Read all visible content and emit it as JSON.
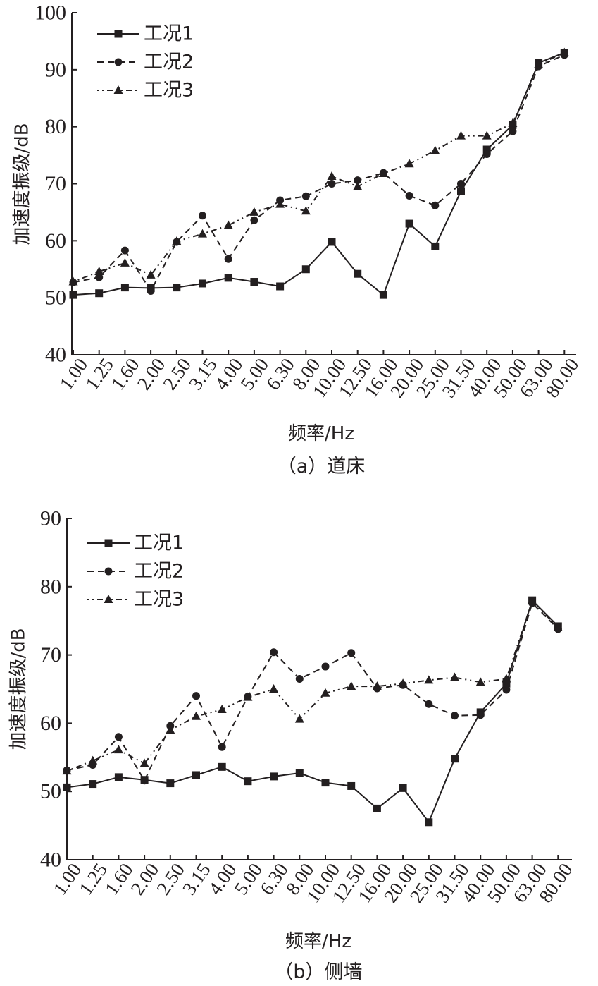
{
  "chart_data": [
    {
      "type": "line",
      "caption": "（a）道床",
      "xlabel": "频率/Hz",
      "ylabel": "加速度振级/dB",
      "ylim": [
        40,
        100
      ],
      "yticks": [
        40,
        50,
        60,
        70,
        80,
        90,
        100
      ],
      "categories": [
        "1.00",
        "1.25",
        "1.60",
        "2.00",
        "2.50",
        "3.15",
        "4.00",
        "5.00",
        "6.30",
        "8.00",
        "10.00",
        "12.50",
        "16.00",
        "20.00",
        "25.00",
        "31.50",
        "40.00",
        "50.00",
        "63.00",
        "80.00"
      ],
      "legend_position": "top-left",
      "series": [
        {
          "name": "工况1",
          "marker": "square",
          "dash": "solid",
          "values": [
            50.5,
            50.8,
            51.8,
            51.7,
            51.8,
            52.5,
            53.5,
            52.8,
            52.0,
            55.0,
            59.8,
            54.2,
            50.5,
            63.0,
            59.0,
            68.7,
            76.0,
            80.3,
            91.2,
            93.0
          ]
        },
        {
          "name": "工况2",
          "marker": "circle",
          "dash": "dashed",
          "values": [
            52.7,
            53.6,
            58.3,
            51.2,
            59.8,
            64.4,
            56.8,
            63.6,
            67.1,
            67.8,
            70.0,
            70.6,
            71.9,
            67.9,
            66.2,
            70.0,
            75.2,
            79.2,
            90.6,
            92.6
          ]
        },
        {
          "name": "工况3",
          "marker": "triangle",
          "dash": "dotted",
          "values": [
            52.8,
            54.6,
            56.1,
            54.0,
            59.9,
            61.2,
            62.7,
            65.0,
            66.4,
            65.2,
            71.3,
            69.5,
            71.8,
            73.5,
            75.8,
            78.4,
            78.4,
            80.6,
            90.9,
            93.0
          ]
        }
      ]
    },
    {
      "type": "line",
      "caption": "（b）侧墙",
      "xlabel": "频率/Hz",
      "ylabel": "加速度振级/dB",
      "ylim": [
        40,
        90
      ],
      "yticks": [
        40,
        50,
        60,
        70,
        80,
        90
      ],
      "categories": [
        "1.00",
        "1.25",
        "1.60",
        "2.00",
        "2.50",
        "3.15",
        "4.00",
        "5.00",
        "6.30",
        "8.00",
        "10.00",
        "12.50",
        "16.00",
        "20.00",
        "25.00",
        "31.50",
        "40.00",
        "50.00",
        "63.00",
        "80.00"
      ],
      "legend_position": "top-left",
      "series": [
        {
          "name": "工况1",
          "marker": "square",
          "dash": "solid",
          "values": [
            50.6,
            51.1,
            52.1,
            51.7,
            51.2,
            52.4,
            53.6,
            51.5,
            52.2,
            52.7,
            51.3,
            50.8,
            47.5,
            50.5,
            45.5,
            54.8,
            61.6,
            65.8,
            78.0,
            74.2
          ]
        },
        {
          "name": "工况2",
          "marker": "circle",
          "dash": "dashed",
          "values": [
            53.1,
            53.9,
            58.0,
            51.6,
            59.6,
            64.0,
            56.5,
            63.9,
            70.4,
            66.5,
            68.3,
            70.3,
            65.1,
            65.6,
            62.8,
            61.1,
            61.2,
            64.9,
            77.6,
            73.8
          ]
        },
        {
          "name": "工况3",
          "marker": "triangle",
          "dash": "dotted",
          "values": [
            53.0,
            54.5,
            56.1,
            54.1,
            59.0,
            61.0,
            62.0,
            63.8,
            65.0,
            60.6,
            64.4,
            65.4,
            65.4,
            65.8,
            66.3,
            66.7,
            66.0,
            66.5,
            77.9,
            74.0
          ]
        }
      ]
    }
  ]
}
